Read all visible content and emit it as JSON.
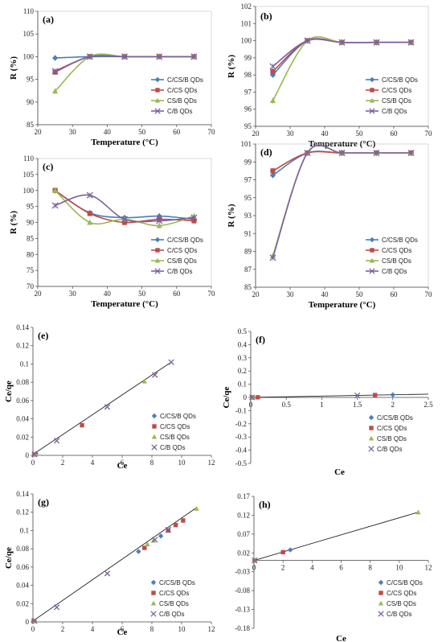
{
  "series_styles": [
    {
      "name": "C/CS/B QDs",
      "color": "#4a7ebb",
      "marker": "diamond"
    },
    {
      "name": "C/CS QDs",
      "color": "#be4b48",
      "marker": "square"
    },
    {
      "name": "CS/B QDs",
      "color": "#98b954",
      "marker": "triangle"
    },
    {
      "name": "C/B QDs",
      "color": "#7d60a0",
      "marker": "x"
    }
  ],
  "chart_data": [
    {
      "panel": "(a)",
      "type": "line",
      "xlabel": "Temperature (°C)",
      "ylabel": "R (%)",
      "xlim": [
        20,
        70
      ],
      "ylim": [
        85,
        110
      ],
      "xticks": [
        20,
        30,
        40,
        50,
        60,
        70
      ],
      "yticks": [
        85,
        90,
        95,
        100,
        105,
        110
      ],
      "legend": "right",
      "x": [
        25,
        35,
        45,
        55,
        65
      ],
      "series": [
        {
          "name": "C/CS/B QDs",
          "values": [
            99.7,
            100,
            100,
            100,
            100
          ]
        },
        {
          "name": "C/CS QDs",
          "values": [
            96.6,
            100,
            100,
            100,
            100
          ]
        },
        {
          "name": "CS/B QDs",
          "values": [
            92.4,
            100,
            100,
            100,
            100
          ]
        },
        {
          "name": "C/B QDs",
          "values": [
            96.8,
            100,
            100,
            100,
            100
          ]
        }
      ]
    },
    {
      "panel": "(b)",
      "type": "line",
      "xlabel": "Temperature (°C)",
      "ylabel": "R (%)",
      "xlim": [
        20,
        70
      ],
      "ylim": [
        95,
        102
      ],
      "xticks": [
        20,
        30,
        40,
        50,
        60,
        70
      ],
      "yticks": [
        95,
        96,
        97,
        98,
        99,
        100,
        101,
        102
      ],
      "legend": "right",
      "x": [
        25,
        35,
        45,
        55,
        65
      ],
      "series": [
        {
          "name": "C/CS/B QDs",
          "values": [
            98.0,
            100,
            99.9,
            99.9,
            99.9
          ]
        },
        {
          "name": "C/CS QDs",
          "values": [
            98.2,
            100,
            99.9,
            99.9,
            99.9
          ]
        },
        {
          "name": "CS/B QDs",
          "values": [
            96.5,
            100,
            99.9,
            99.9,
            99.9
          ]
        },
        {
          "name": "C/B QDs",
          "values": [
            98.5,
            100,
            99.9,
            99.9,
            99.9
          ]
        }
      ]
    },
    {
      "panel": "(c)",
      "type": "line",
      "xlabel": "Temperature (°C)",
      "ylabel": "R (%)",
      "xlim": [
        20,
        70
      ],
      "ylim": [
        70,
        110
      ],
      "xticks": [
        20,
        30,
        40,
        50,
        60,
        70
      ],
      "yticks": [
        70,
        75,
        80,
        85,
        90,
        95,
        100,
        105,
        110
      ],
      "legend": "right",
      "x": [
        25,
        35,
        45,
        55,
        65
      ],
      "series": [
        {
          "name": "C/CS/B QDs",
          "values": [
            100,
            93,
            91.5,
            92,
            91
          ]
        },
        {
          "name": "C/CS QDs",
          "values": [
            100,
            92.8,
            90,
            91,
            90.5
          ]
        },
        {
          "name": "CS/B QDs",
          "values": [
            100,
            90,
            91,
            89,
            92
          ]
        },
        {
          "name": "C/B QDs",
          "values": [
            95.3,
            98.5,
            91,
            90.5,
            91.5
          ]
        }
      ]
    },
    {
      "panel": "(d)",
      "type": "line",
      "xlabel": "Temperature (°C)",
      "ylabel": "R (%)",
      "xlim": [
        20,
        70
      ],
      "ylim": [
        85,
        101
      ],
      "xticks": [
        20,
        30,
        40,
        50,
        60,
        70
      ],
      "yticks": [
        85,
        87,
        89,
        91,
        93,
        95,
        97,
        99,
        101
      ],
      "legend": "right",
      "x": [
        25,
        35,
        45,
        55,
        65
      ],
      "series": [
        {
          "name": "C/CS/B QDs",
          "values": [
            97.5,
            100,
            100,
            100,
            100
          ]
        },
        {
          "name": "C/CS QDs",
          "values": [
            98,
            100,
            100,
            100,
            100
          ]
        },
        {
          "name": "CS/B QDs",
          "values": [
            88.5,
            100,
            100,
            100,
            100
          ]
        },
        {
          "name": "C/B QDs",
          "values": [
            88.3,
            100,
            100,
            100,
            100
          ]
        }
      ]
    },
    {
      "panel": "(e)",
      "type": "scatter",
      "xlabel": "Ce",
      "ylabel": "Ce/qe",
      "xlim": [
        0,
        12
      ],
      "ylim": [
        0,
        0.14
      ],
      "xticks": [
        0,
        2,
        4,
        6,
        8,
        10,
        12
      ],
      "yticks": [
        0,
        0.02,
        0.04,
        0.06,
        0.08,
        0.1,
        0.12,
        0.14
      ],
      "legend": "right",
      "trendline": [
        [
          0,
          0.001
        ],
        [
          9.3,
          0.102
        ]
      ],
      "series": [
        {
          "name": "C/CS/B QDs",
          "points": [
            [
              0.1,
              0.001
            ],
            [
              0.2,
              0.002
            ]
          ]
        },
        {
          "name": "C/CS QDs",
          "points": [
            [
              0.1,
              0.001
            ],
            [
              3.3,
              0.033
            ]
          ]
        },
        {
          "name": "CS/B QDs",
          "points": [
            [
              0.15,
              0.001
            ],
            [
              7.5,
              0.081
            ]
          ]
        },
        {
          "name": "C/B QDs",
          "points": [
            [
              0.1,
              0.001
            ],
            [
              1.6,
              0.016
            ],
            [
              5.0,
              0.053
            ],
            [
              8.2,
              0.088
            ],
            [
              9.3,
              0.102
            ]
          ]
        }
      ]
    },
    {
      "panel": "(f)",
      "type": "scatter",
      "xlabel": "Ce",
      "ylabel": "Ce/qe",
      "xlim": [
        0,
        2.5
      ],
      "ylim": [
        -0.5,
        0.5
      ],
      "xticks": [
        0,
        0.5,
        1,
        1.5,
        2,
        2.5
      ],
      "yticks": [
        -0.5,
        -0.4,
        -0.3,
        -0.2,
        -0.1,
        0,
        0.1,
        0.2,
        0.3,
        0.4,
        0.5
      ],
      "legend": "bottom-right",
      "trendline": [
        [
          0,
          0.0
        ],
        [
          2.5,
          0.025
        ]
      ],
      "series": [
        {
          "name": "C/CS/B QDs",
          "points": [
            [
              0.02,
              0.0
            ],
            [
              2.0,
              0.02
            ]
          ]
        },
        {
          "name": "C/CS QDs",
          "points": [
            [
              0.02,
              0.0
            ],
            [
              0.1,
              0.001
            ],
            [
              1.75,
              0.018
            ]
          ]
        },
        {
          "name": "CS/B QDs",
          "points": [
            [
              0.03,
              0.0
            ]
          ]
        },
        {
          "name": "C/B QDs",
          "points": [
            [
              0.02,
              0.0
            ],
            [
              1.5,
              0.015
            ]
          ]
        }
      ]
    },
    {
      "panel": "(g)",
      "type": "scatter",
      "xlabel": "Ce",
      "ylabel": "Ce/qe",
      "xlim": [
        0,
        12
      ],
      "ylim": [
        0,
        0.14
      ],
      "xticks": [
        0,
        2,
        4,
        6,
        8,
        10,
        12
      ],
      "yticks": [
        0,
        0.02,
        0.04,
        0.06,
        0.08,
        0.1,
        0.12,
        0.14
      ],
      "legend": "right",
      "trendline": [
        [
          0,
          0.001
        ],
        [
          11,
          0.125
        ]
      ],
      "series": [
        {
          "name": "C/CS/B QDs",
          "points": [
            [
              0.1,
              0.001
            ],
            [
              7.1,
              0.077
            ],
            [
              8.6,
              0.094
            ]
          ]
        },
        {
          "name": "C/CS QDs",
          "points": [
            [
              0.05,
              0.001
            ],
            [
              7.5,
              0.081
            ],
            [
              9.1,
              0.1
            ],
            [
              9.6,
              0.106
            ],
            [
              10.1,
              0.111
            ]
          ]
        },
        {
          "name": "CS/B QDs",
          "points": [
            [
              0.1,
              0.001
            ],
            [
              7.7,
              0.085
            ],
            [
              8.1,
              0.089
            ],
            [
              11.0,
              0.124
            ]
          ]
        },
        {
          "name": "C/B QDs",
          "points": [
            [
              0.1,
              0.001
            ],
            [
              1.6,
              0.016
            ],
            [
              5.0,
              0.053
            ],
            [
              8.2,
              0.09
            ],
            [
              9.1,
              0.101
            ]
          ]
        }
      ]
    },
    {
      "panel": "(h)",
      "type": "scatter",
      "xlabel": "Ce",
      "ylabel": "",
      "xlim": [
        0,
        12
      ],
      "ylim": [
        -0.18,
        0.17
      ],
      "xticks": [
        0,
        2,
        4,
        6,
        8,
        10,
        12
      ],
      "yticks": [
        -0.18,
        -0.13,
        -0.08,
        -0.03,
        0.02,
        0.07,
        0.12,
        0.17
      ],
      "legend": "bottom-right",
      "trendline": [
        [
          0,
          0.0
        ],
        [
          11.3,
          0.128
        ]
      ],
      "series": [
        {
          "name": "C/CS/B QDs",
          "points": [
            [
              0.05,
              0.0
            ],
            [
              2.5,
              0.028
            ]
          ]
        },
        {
          "name": "C/CS QDs",
          "points": [
            [
              0.05,
              0.0
            ],
            [
              2.0,
              0.022
            ]
          ]
        },
        {
          "name": "CS/B QDs",
          "points": [
            [
              0.05,
              0.0
            ],
            [
              11.3,
              0.128
            ]
          ]
        },
        {
          "name": "C/B QDs",
          "points": [
            [
              0.05,
              0.0
            ]
          ]
        }
      ]
    }
  ]
}
